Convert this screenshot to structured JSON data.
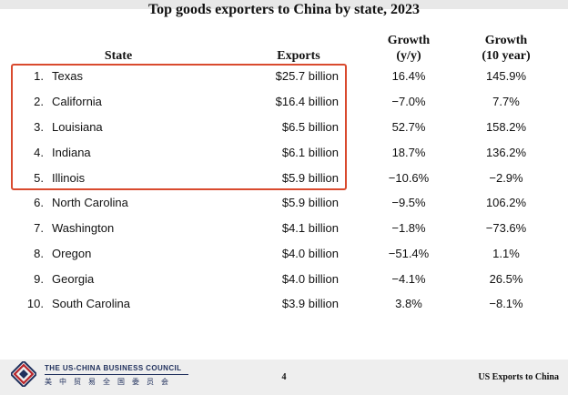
{
  "title": "Top goods exporters to China by state, 2023",
  "headers": {
    "state": "State",
    "exports": "Exports",
    "growth_yoy_line1": "Growth",
    "growth_yoy_line2": "(y/y)",
    "growth_10y_line1": "Growth",
    "growth_10y_line2": "(10 year)"
  },
  "rows": [
    {
      "rank": "1.",
      "state": "Texas",
      "exports": "$25.7 billion",
      "yoy": "16.4%",
      "ten": "145.9%"
    },
    {
      "rank": "2.",
      "state": "California",
      "exports": "$16.4 billion",
      "yoy": "−7.0%",
      "ten": "7.7%"
    },
    {
      "rank": "3.",
      "state": "Louisiana",
      "exports": "$6.5 billion",
      "yoy": "52.7%",
      "ten": "158.2%"
    },
    {
      "rank": "4.",
      "state": "Indiana",
      "exports": "$6.1 billion",
      "yoy": "18.7%",
      "ten": "136.2%"
    },
    {
      "rank": "5.",
      "state": "Illinois",
      "exports": "$5.9 billion",
      "yoy": "−10.6%",
      "ten": "−2.9%"
    },
    {
      "rank": "6.",
      "state": "North Carolina",
      "exports": "$5.9 billion",
      "yoy": "−9.5%",
      "ten": "106.2%"
    },
    {
      "rank": "7.",
      "state": "Washington",
      "exports": "$4.1 billion",
      "yoy": "−1.8%",
      "ten": "−73.6%"
    },
    {
      "rank": "8.",
      "state": "Oregon",
      "exports": "$4.0 billion",
      "yoy": "−51.4%",
      "ten": "1.1%"
    },
    {
      "rank": "9.",
      "state": "Georgia",
      "exports": "$4.0 billion",
      "yoy": "−4.1%",
      "ten": "26.5%"
    },
    {
      "rank": "10.",
      "state": "South Carolina",
      "exports": "$3.9 billion",
      "yoy": "3.8%",
      "ten": "−8.1%"
    }
  ],
  "highlight_color": "#d94a2e",
  "footer": {
    "org_name": "THE US-CHINA BUSINESS COUNCIL",
    "org_name_cn": "美中贸易全国委员会",
    "page_number": "4",
    "section": "US Exports to China"
  },
  "icons": {
    "logo": "uscbc-logo-icon"
  }
}
